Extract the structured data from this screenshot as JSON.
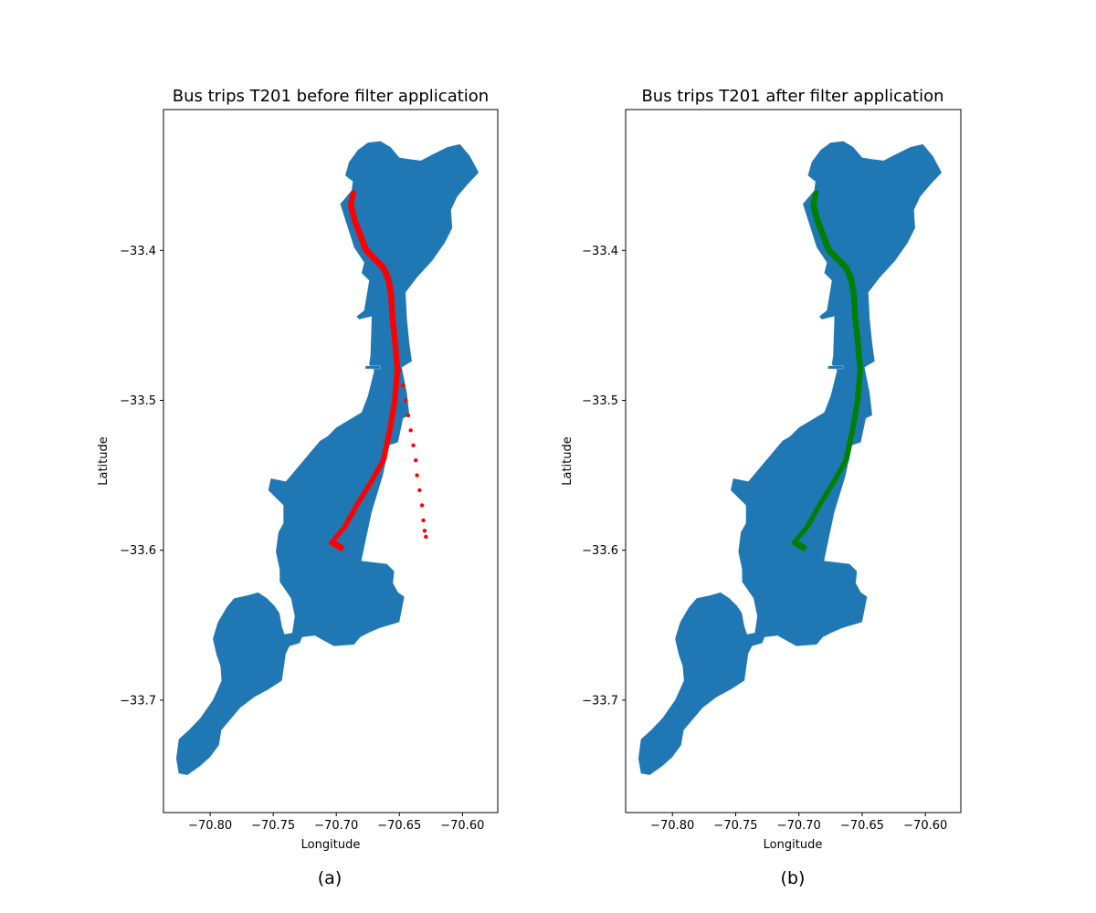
{
  "figure": {
    "panel_labels": [
      "(a)",
      "(b)"
    ]
  },
  "chart_data": [
    {
      "type": "scatter",
      "title": "Bus trips T201 before filter application",
      "xlabel": "Longitude",
      "ylabel": "Latitude",
      "xlim": [
        -70.837,
        -70.572
      ],
      "ylim": [
        -33.775,
        -33.306
      ],
      "xticks": [
        -70.8,
        -70.75,
        -70.7,
        -70.65,
        -70.6
      ],
      "xtick_labels": [
        "−70.80",
        "−70.75",
        "−70.70",
        "−70.65",
        "−70.60"
      ],
      "yticks": [
        -33.4,
        -33.5,
        -33.6,
        -33.7
      ],
      "ytick_labels": [
        "−33.4",
        "−33.5",
        "−33.6",
        "−33.7"
      ],
      "grid": false,
      "region_color": "#1f77b4",
      "point_color": "#ff0000",
      "route": [
        [
          -70.687,
          -33.362
        ],
        [
          -70.689,
          -33.37
        ],
        [
          -70.686,
          -33.38
        ],
        [
          -70.681,
          -33.391
        ],
        [
          -70.677,
          -33.4
        ],
        [
          -70.67,
          -33.406
        ],
        [
          -70.663,
          -33.412
        ],
        [
          -70.659,
          -33.42
        ],
        [
          -70.657,
          -33.43
        ],
        [
          -70.656,
          -33.445
        ],
        [
          -70.654,
          -33.46
        ],
        [
          -70.652,
          -33.48
        ],
        [
          -70.654,
          -33.5
        ],
        [
          -70.658,
          -33.52
        ],
        [
          -70.663,
          -33.54
        ],
        [
          -70.673,
          -33.555
        ],
        [
          -70.684,
          -33.57
        ],
        [
          -70.694,
          -33.585
        ],
        [
          -70.704,
          -33.595
        ],
        [
          -70.696,
          -33.599
        ]
      ],
      "outliers": [
        [
          -70.652,
          -33.47
        ],
        [
          -70.65,
          -33.48
        ],
        [
          -70.647,
          -33.49
        ],
        [
          -70.645,
          -33.5
        ],
        [
          -70.643,
          -33.51
        ],
        [
          -70.641,
          -33.52
        ],
        [
          -70.639,
          -33.53
        ],
        [
          -70.637,
          -33.54
        ],
        [
          -70.636,
          -33.55
        ],
        [
          -70.634,
          -33.56
        ],
        [
          -70.632,
          -33.57
        ],
        [
          -70.631,
          -33.58
        ],
        [
          -70.63,
          -33.587
        ],
        [
          -70.629,
          -33.591
        ]
      ]
    },
    {
      "type": "scatter",
      "title": "Bus trips T201 after filter application",
      "xlabel": "Longitude",
      "ylabel": "Latitude",
      "xlim": [
        -70.837,
        -70.572
      ],
      "ylim": [
        -33.775,
        -33.306
      ],
      "xticks": [
        -70.8,
        -70.75,
        -70.7,
        -70.65,
        -70.6
      ],
      "xtick_labels": [
        "−70.80",
        "−70.75",
        "−70.70",
        "−70.65",
        "−70.60"
      ],
      "yticks": [
        -33.4,
        -33.5,
        -33.6,
        -33.7
      ],
      "ytick_labels": [
        "−33.4",
        "−33.5",
        "−33.6",
        "−33.7"
      ],
      "grid": false,
      "region_color": "#1f77b4",
      "point_color": "#008000",
      "route": [
        [
          -70.687,
          -33.362
        ],
        [
          -70.689,
          -33.37
        ],
        [
          -70.686,
          -33.38
        ],
        [
          -70.681,
          -33.391
        ],
        [
          -70.677,
          -33.4
        ],
        [
          -70.67,
          -33.406
        ],
        [
          -70.663,
          -33.412
        ],
        [
          -70.659,
          -33.42
        ],
        [
          -70.657,
          -33.43
        ],
        [
          -70.656,
          -33.445
        ],
        [
          -70.654,
          -33.46
        ],
        [
          -70.652,
          -33.48
        ],
        [
          -70.654,
          -33.5
        ],
        [
          -70.658,
          -33.52
        ],
        [
          -70.663,
          -33.54
        ],
        [
          -70.673,
          -33.555
        ],
        [
          -70.684,
          -33.57
        ],
        [
          -70.694,
          -33.585
        ],
        [
          -70.704,
          -33.595
        ],
        [
          -70.696,
          -33.599
        ]
      ],
      "outliers": []
    }
  ]
}
